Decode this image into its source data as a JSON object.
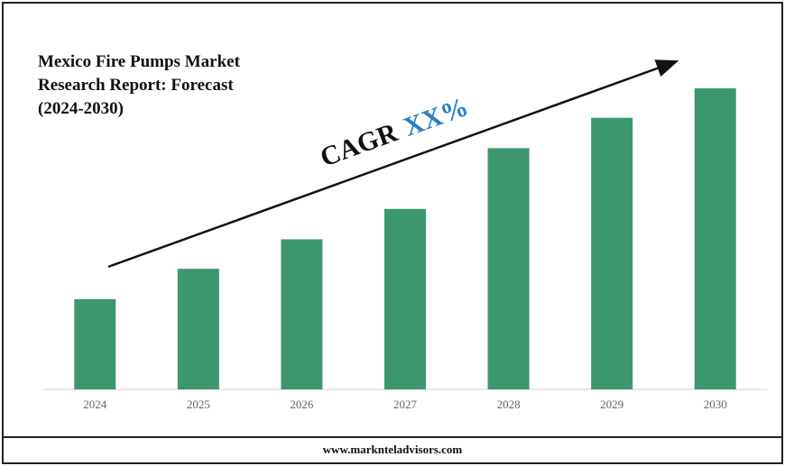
{
  "chart_data": {
    "type": "bar",
    "title": "Mexico Fire Pumps Market Research Report: Forecast (2024-2030)",
    "annotation": {
      "label": "CAGR",
      "value": "XX%"
    },
    "categories": [
      "2024",
      "2025",
      "2026",
      "2027",
      "2028",
      "2029",
      "2030"
    ],
    "values": [
      101,
      135,
      168,
      202,
      270,
      304,
      337
    ],
    "color": "#3c976e",
    "ylim": [
      0,
      340
    ]
  },
  "footer": "www.marknteladvisors.com"
}
